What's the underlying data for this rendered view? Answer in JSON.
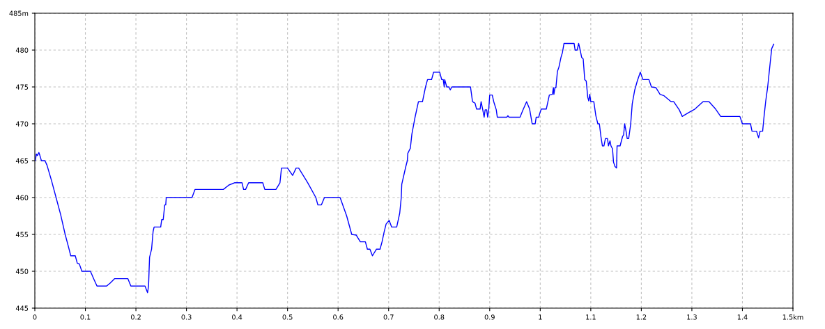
{
  "chart_data": {
    "type": "line",
    "x": [
      0.0,
      0.001,
      0.003,
      0.005,
      0.008,
      0.01,
      0.013,
      0.02,
      0.024,
      0.033,
      0.042,
      0.051,
      0.06,
      0.067,
      0.071,
      0.08,
      0.084,
      0.088,
      0.093,
      0.11,
      0.117,
      0.123,
      0.142,
      0.149,
      0.158,
      0.184,
      0.19,
      0.218,
      0.223,
      0.225,
      0.226,
      0.227,
      0.231,
      0.234,
      0.236,
      0.249,
      0.251,
      0.254,
      0.257,
      0.259,
      0.26,
      0.311,
      0.317,
      0.373,
      0.384,
      0.395,
      0.41,
      0.413,
      0.417,
      0.423,
      0.451,
      0.455,
      0.477,
      0.485,
      0.488,
      0.5,
      0.51,
      0.517,
      0.522,
      0.54,
      0.556,
      0.56,
      0.567,
      0.573,
      0.604,
      0.617,
      0.627,
      0.636,
      0.644,
      0.654,
      0.658,
      0.663,
      0.668,
      0.676,
      0.683,
      0.687,
      0.691,
      0.695,
      0.701,
      0.706,
      0.716,
      0.722,
      0.725,
      0.726,
      0.734,
      0.737,
      0.738,
      0.743,
      0.746,
      0.752,
      0.759,
      0.767,
      0.773,
      0.777,
      0.785,
      0.789,
      0.801,
      0.805,
      0.808,
      0.81,
      0.811,
      0.815,
      0.819,
      0.822,
      0.825,
      0.862,
      0.866,
      0.871,
      0.874,
      0.881,
      0.883,
      0.886,
      0.889,
      0.891,
      0.894,
      0.896,
      0.898,
      0.9,
      0.905,
      0.908,
      0.913,
      0.915,
      0.934,
      0.936,
      0.938,
      0.96,
      0.966,
      0.973,
      0.979,
      0.984,
      0.99,
      0.992,
      0.997,
      0.999,
      1.002,
      1.012,
      1.018,
      1.024,
      1.026,
      1.027,
      1.029,
      1.031,
      1.034,
      1.037,
      1.041,
      1.044,
      1.047,
      1.067,
      1.069,
      1.073,
      1.076,
      1.079,
      1.082,
      1.085,
      1.088,
      1.091,
      1.094,
      1.096,
      1.098,
      1.1,
      1.106,
      1.11,
      1.114,
      1.117,
      1.12,
      1.123,
      1.126,
      1.129,
      1.133,
      1.135,
      1.138,
      1.14,
      1.143,
      1.145,
      1.148,
      1.151,
      1.152,
      1.158,
      1.163,
      1.165,
      1.167,
      1.17,
      1.172,
      1.175,
      1.179,
      1.182,
      1.187,
      1.192,
      1.198,
      1.203,
      1.215,
      1.22,
      1.229,
      1.237,
      1.245,
      1.259,
      1.264,
      1.275,
      1.281,
      1.293,
      1.306,
      1.322,
      1.334,
      1.347,
      1.357,
      1.395,
      1.4,
      1.416,
      1.419,
      1.428,
      1.432,
      1.435,
      1.44,
      1.443,
      1.446,
      1.45,
      1.455,
      1.458,
      1.462
    ],
    "series": [
      {
        "color": "#0000ff",
        "values": [
          465,
          465,
          465.9,
          465.7,
          466.1,
          465.7,
          465,
          465,
          464.4,
          462.3,
          460,
          457.7,
          455,
          453.2,
          452.1,
          452.1,
          451.1,
          451,
          450,
          450,
          448.9,
          448,
          448,
          448.4,
          449,
          449,
          448,
          448,
          447.1,
          448,
          450,
          451.9,
          453,
          455.4,
          456,
          456,
          457,
          457,
          459,
          459,
          460,
          460,
          461.1,
          461.1,
          461.7,
          462,
          462,
          461.1,
          461.1,
          462,
          462,
          461.1,
          461.1,
          462,
          464,
          464,
          463,
          464,
          464,
          462,
          460,
          459,
          459,
          460,
          460,
          457.5,
          455,
          454.9,
          454,
          454,
          453,
          453,
          452.1,
          453,
          453,
          454,
          455.3,
          456.4,
          456.9,
          456,
          456,
          457.9,
          460,
          461.8,
          464.2,
          465,
          466,
          466.7,
          468.6,
          470.8,
          473,
          473,
          475,
          476,
          476,
          477,
          477,
          476,
          476,
          475,
          476,
          475,
          475,
          474.6,
          475,
          475,
          473,
          472.8,
          472,
          472,
          473,
          472,
          470.9,
          471.9,
          471.9,
          470.9,
          471.9,
          473.9,
          473.9,
          473,
          471.9,
          470.9,
          470.9,
          471.1,
          470.9,
          470.9,
          471.9,
          473,
          472,
          470,
          470,
          470.9,
          470.9,
          471.4,
          472,
          472,
          473.9,
          474,
          474.9,
          474,
          474.9,
          474.9,
          477.1,
          477.7,
          479,
          479.7,
          480.9,
          480.9,
          480,
          480,
          480.9,
          480,
          479,
          478.8,
          476,
          475.8,
          473.6,
          473.1,
          474,
          473,
          473,
          471.1,
          470,
          470,
          468.3,
          467,
          467,
          468,
          468,
          467,
          467.7,
          467,
          466.6,
          464.8,
          464.2,
          464,
          467,
          467,
          468.3,
          468.5,
          470,
          468.9,
          468,
          468,
          470,
          472.7,
          474.6,
          475.8,
          477,
          476,
          476,
          475,
          474.9,
          474,
          473.8,
          473,
          473,
          471.9,
          471,
          471.5,
          472,
          473,
          473,
          472,
          471,
          471,
          470,
          470,
          469,
          469,
          468.1,
          469,
          469,
          471.1,
          473,
          475,
          478.3,
          480.2,
          480.8
        ]
      }
    ],
    "xlim": [
      0,
      1.5
    ],
    "xticks": [
      0,
      0.1,
      0.2,
      0.3,
      0.4,
      0.5,
      0.6,
      0.7,
      0.8,
      0.9,
      1,
      1.1,
      1.2,
      1.3,
      1.4,
      {
        "value": 1.5,
        "label": "1.5km"
      }
    ],
    "ylim": [
      445,
      485
    ],
    "yticks": [
      445,
      450,
      455,
      460,
      465,
      470,
      475,
      480,
      {
        "value": 485,
        "label": "485m"
      }
    ],
    "grid": true,
    "line_style": "solid"
  }
}
